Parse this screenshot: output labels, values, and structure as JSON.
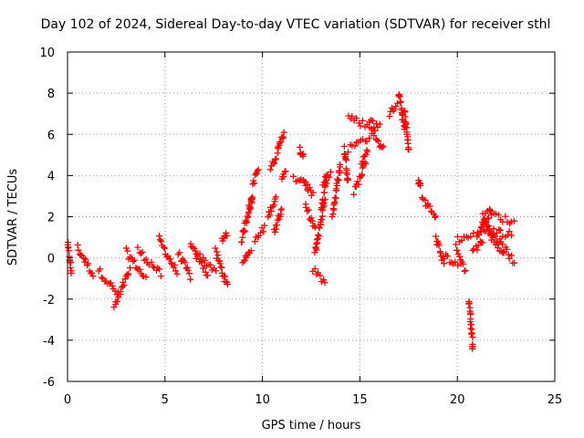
{
  "chart_data": {
    "type": "scatter",
    "title": "Day 102 of 2024, Sidereal Day-to-day VTEC variation (SDTVAR) for receiver sthl",
    "xlabel": "GPS time / hours",
    "ylabel": "SDTVAR / TECUs",
    "xlim": [
      0,
      25
    ],
    "ylim": [
      -6,
      10
    ],
    "xticks": [
      "0",
      "5",
      "10",
      "15",
      "20",
      "25"
    ],
    "yticks": [
      "-6",
      "-4",
      "-2",
      "0",
      "2",
      "4",
      "6",
      "8",
      "10"
    ],
    "grid": true,
    "marker": "plus",
    "color": "#ff0000",
    "series": [
      {
        "name": "SDTVAR",
        "segments": [
          {
            "x": [
              0.0,
              0.2
            ],
            "y": [
              0.7,
              -0.7
            ]
          },
          {
            "x": [
              0.5,
              1.3
            ],
            "y": [
              0.5,
              -0.8
            ]
          },
          {
            "x": [
              1.6,
              2.6
            ],
            "y": [
              -0.6,
              -1.8
            ]
          },
          {
            "x": [
              2.4,
              3.2
            ],
            "y": [
              -2.4,
              -0.6
            ]
          },
          {
            "x": [
              3.0,
              4.0
            ],
            "y": [
              0.3,
              -1.0
            ]
          },
          {
            "x": [
              3.6,
              4.8
            ],
            "y": [
              0.4,
              -0.8
            ]
          },
          {
            "x": [
              4.7,
              5.6
            ],
            "y": [
              0.9,
              -0.7
            ]
          },
          {
            "x": [
              5.7,
              6.3
            ],
            "y": [
              0.2,
              -0.9
            ]
          },
          {
            "x": [
              6.3,
              7.2
            ],
            "y": [
              0.6,
              -0.8
            ]
          },
          {
            "x": [
              6.6,
              7.6
            ],
            "y": [
              0.2,
              -0.6
            ]
          },
          {
            "x": [
              7.6,
              8.2
            ],
            "y": [
              0.3,
              -1.4
            ]
          },
          {
            "x": [
              7.9,
              8.2
            ],
            "y": [
              0.9,
              1.2
            ]
          },
          {
            "x": [
              8.9,
              9.5
            ],
            "y": [
              0.8,
              3.0
            ]
          },
          {
            "x": [
              9.0,
              9.4
            ],
            "y": [
              -0.3,
              0.5
            ]
          },
          {
            "x": [
              9.3,
              9.5
            ],
            "y": [
              2.4,
              2.9
            ]
          },
          {
            "x": [
              9.5,
              9.8
            ],
            "y": [
              3.6,
              4.3
            ]
          },
          {
            "x": [
              9.6,
              10.1
            ],
            "y": [
              0.8,
              1.5
            ]
          },
          {
            "x": [
              10.3,
              10.7
            ],
            "y": [
              2.0,
              3.0
            ]
          },
          {
            "x": [
              10.4,
              10.8
            ],
            "y": [
              4.3,
              5.2
            ]
          },
          {
            "x": [
              10.6,
              11.0
            ],
            "y": [
              1.3,
              2.5
            ]
          },
          {
            "x": [
              10.8,
              11.1
            ],
            "y": [
              5.2,
              6.1
            ]
          },
          {
            "x": [
              11.0,
              11.2
            ],
            "y": [
              4.0,
              4.1
            ]
          },
          {
            "x": [
              11.6,
              12.3
            ],
            "y": [
              3.9,
              3.5
            ]
          },
          {
            "x": [
              11.9,
              12.1
            ],
            "y": [
              5.2,
              5.0
            ]
          },
          {
            "x": [
              12.1,
              12.6
            ],
            "y": [
              3.8,
              3.0
            ]
          },
          {
            "x": [
              12.2,
              12.7
            ],
            "y": [
              2.5,
              1.4
            ]
          },
          {
            "x": [
              12.6,
              13.2
            ],
            "y": [
              -0.6,
              -1.2
            ]
          },
          {
            "x": [
              12.7,
              13.2
            ],
            "y": [
              0.2,
              2.9
            ]
          },
          {
            "x": [
              13.0,
              13.3
            ],
            "y": [
              2.4,
              3.9
            ]
          },
          {
            "x": [
              13.1,
              13.5
            ],
            "y": [
              3.7,
              4.1
            ]
          },
          {
            "x": [
              13.6,
              14.0
            ],
            "y": [
              2.1,
              4.5
            ]
          },
          {
            "x": [
              14.2,
              14.4
            ],
            "y": [
              5.3,
              3.7
            ]
          },
          {
            "x": [
              14.4,
              15.8
            ],
            "y": [
              6.9,
              6.2
            ]
          },
          {
            "x": [
              14.4,
              15.7
            ],
            "y": [
              5.3,
              6.0
            ]
          },
          {
            "x": [
              14.7,
              15.3
            ],
            "y": [
              3.2,
              4.6
            ]
          },
          {
            "x": [
              15.1,
              15.4
            ],
            "y": [
              4.7,
              5.3
            ]
          },
          {
            "x": [
              15.5,
              16.0
            ],
            "y": [
              6.6,
              6.4
            ]
          },
          {
            "x": [
              15.8,
              16.2
            ],
            "y": [
              5.6,
              5.5
            ]
          },
          {
            "x": [
              16.5,
              16.9
            ],
            "y": [
              7.0,
              7.4
            ]
          },
          {
            "x": [
              17.0,
              17.3
            ],
            "y": [
              8.0,
              6.2
            ]
          },
          {
            "x": [
              17.3,
              17.5
            ],
            "y": [
              7.1,
              5.2
            ]
          },
          {
            "x": [
              18.0,
              18.1
            ],
            "y": [
              3.7,
              3.5
            ]
          },
          {
            "x": [
              18.2,
              18.9
            ],
            "y": [
              3.0,
              1.9
            ]
          },
          {
            "x": [
              18.9,
              19.3
            ],
            "y": [
              1.0,
              -0.2
            ]
          },
          {
            "x": [
              19.3,
              20.0
            ],
            "y": [
              0.1,
              -0.3
            ]
          },
          {
            "x": [
              19.9,
              20.4
            ],
            "y": [
              0.5,
              -0.6
            ]
          },
          {
            "x": [
              20.0,
              20.8
            ],
            "y": [
              0.9,
              1.1
            ]
          },
          {
            "x": [
              20.6,
              20.8
            ],
            "y": [
              -2.1,
              -4.4
            ]
          },
          {
            "x": [
              20.8,
              21.3
            ],
            "y": [
              0.3,
              0.9
            ]
          },
          {
            "x": [
              21.0,
              21.7
            ],
            "y": [
              1.0,
              2.3
            ]
          },
          {
            "x": [
              21.3,
              22.9
            ],
            "y": [
              2.3,
              1.7
            ]
          },
          {
            "x": [
              21.2,
              22.8
            ],
            "y": [
              1.5,
              1.1
            ]
          },
          {
            "x": [
              21.3,
              22.9
            ],
            "y": [
              1.9,
              -0.2
            ]
          },
          {
            "x": [
              21.5,
              22.4
            ],
            "y": [
              1.2,
              0.2
            ]
          }
        ]
      }
    ]
  }
}
